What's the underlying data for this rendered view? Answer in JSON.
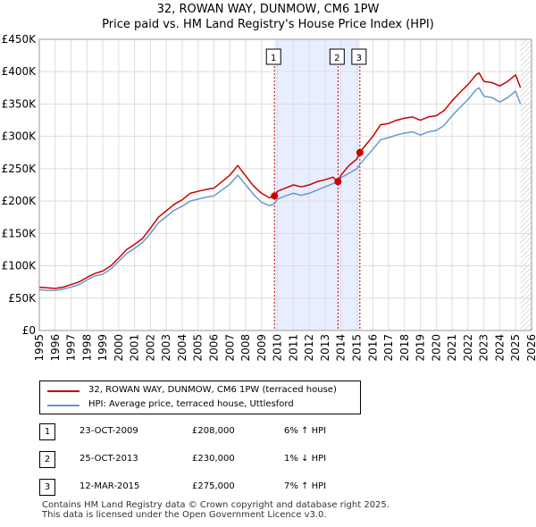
{
  "title_line1": "32, ROWAN WAY, DUNMOW, CM6 1PW",
  "title_line2": "Price paid vs. HM Land Registry's House Price Index (HPI)",
  "colors": {
    "property": "#cc0000",
    "hpi": "#6699cc",
    "shade": "#e8eeff",
    "vline": "#cc0000",
    "grid": "#dddddd"
  },
  "chart_data": {
    "type": "line",
    "title": "32, ROWAN WAY, DUNMOW, CM6 1PW — Price paid vs. HM Land Registry's House Price Index (HPI)",
    "xlabel": "",
    "ylabel": "",
    "xlim": [
      1995,
      2026
    ],
    "ylim": [
      0,
      450000
    ],
    "y_ticks": [
      0,
      50000,
      100000,
      150000,
      200000,
      250000,
      300000,
      350000,
      400000,
      450000
    ],
    "y_tick_labels": [
      "£0",
      "£50K",
      "£100K",
      "£150K",
      "£200K",
      "£250K",
      "£300K",
      "£350K",
      "£400K",
      "£450K"
    ],
    "x_ticks": [
      1995,
      1996,
      1997,
      1998,
      1999,
      2000,
      2001,
      2002,
      2003,
      2004,
      2005,
      2006,
      2007,
      2008,
      2009,
      2010,
      2011,
      2012,
      2013,
      2014,
      2015,
      2016,
      2017,
      2018,
      2019,
      2020,
      2021,
      2022,
      2023,
      2024,
      2025,
      2026
    ],
    "x_tick_labels": [
      "1995",
      "1996",
      "1997",
      "1998",
      "1999",
      "2000",
      "2001",
      "2002",
      "2003",
      "2004",
      "2005",
      "2006",
      "2007",
      "2008",
      "2009",
      "2010",
      "2011",
      "2012",
      "2013",
      "2014",
      "2015",
      "2016",
      "2017",
      "2018",
      "2019",
      "2020",
      "2021",
      "2022",
      "2023",
      "2024",
      "2025",
      "2026"
    ],
    "series": [
      {
        "name": "32, ROWAN WAY, DUNMOW, CM6 1PW (terraced house)",
        "color": "#cc0000",
        "points": [
          [
            1995.0,
            67000
          ],
          [
            1995.5,
            66000
          ],
          [
            1996.0,
            65000
          ],
          [
            1996.5,
            67000
          ],
          [
            1997.0,
            71000
          ],
          [
            1997.5,
            75000
          ],
          [
            1998.0,
            82000
          ],
          [
            1998.5,
            88000
          ],
          [
            1999.0,
            92000
          ],
          [
            1999.5,
            100000
          ],
          [
            2000.0,
            112000
          ],
          [
            2000.5,
            125000
          ],
          [
            2001.0,
            133000
          ],
          [
            2001.5,
            142000
          ],
          [
            2002.0,
            158000
          ],
          [
            2002.5,
            175000
          ],
          [
            2003.0,
            185000
          ],
          [
            2003.5,
            195000
          ],
          [
            2004.0,
            202000
          ],
          [
            2004.5,
            212000
          ],
          [
            2005.0,
            215000
          ],
          [
            2005.5,
            218000
          ],
          [
            2006.0,
            220000
          ],
          [
            2006.5,
            230000
          ],
          [
            2007.0,
            240000
          ],
          [
            2007.5,
            255000
          ],
          [
            2007.9,
            242000
          ],
          [
            2008.5,
            223000
          ],
          [
            2009.0,
            212000
          ],
          [
            2009.5,
            205000
          ],
          [
            2009.81,
            208000
          ],
          [
            2010.0,
            215000
          ],
          [
            2010.5,
            220000
          ],
          [
            2011.0,
            225000
          ],
          [
            2011.5,
            222000
          ],
          [
            2012.0,
            225000
          ],
          [
            2012.5,
            230000
          ],
          [
            2013.0,
            233000
          ],
          [
            2013.5,
            237000
          ],
          [
            2013.81,
            230000
          ],
          [
            2014.0,
            240000
          ],
          [
            2014.5,
            255000
          ],
          [
            2015.0,
            265000
          ],
          [
            2015.19,
            275000
          ],
          [
            2015.5,
            285000
          ],
          [
            2016.0,
            300000
          ],
          [
            2016.5,
            318000
          ],
          [
            2017.0,
            320000
          ],
          [
            2017.5,
            325000
          ],
          [
            2018.0,
            328000
          ],
          [
            2018.5,
            330000
          ],
          [
            2019.0,
            325000
          ],
          [
            2019.5,
            330000
          ],
          [
            2020.0,
            332000
          ],
          [
            2020.5,
            340000
          ],
          [
            2021.0,
            355000
          ],
          [
            2021.5,
            368000
          ],
          [
            2022.0,
            380000
          ],
          [
            2022.5,
            395000
          ],
          [
            2022.7,
            398000
          ],
          [
            2023.0,
            385000
          ],
          [
            2023.5,
            383000
          ],
          [
            2024.0,
            378000
          ],
          [
            2024.5,
            385000
          ],
          [
            2025.0,
            395000
          ],
          [
            2025.3,
            375000
          ]
        ]
      },
      {
        "name": "HPI: Average price, terraced house, Uttlesford",
        "color": "#6699cc",
        "points": [
          [
            1995.0,
            63000
          ],
          [
            1995.5,
            62000
          ],
          [
            1996.0,
            62000
          ],
          [
            1996.5,
            64000
          ],
          [
            1997.0,
            67000
          ],
          [
            1997.5,
            71000
          ],
          [
            1998.0,
            78000
          ],
          [
            1998.5,
            84000
          ],
          [
            1999.0,
            87000
          ],
          [
            1999.5,
            95000
          ],
          [
            2000.0,
            107000
          ],
          [
            2000.5,
            119000
          ],
          [
            2001.0,
            127000
          ],
          [
            2001.5,
            136000
          ],
          [
            2002.0,
            150000
          ],
          [
            2002.5,
            166000
          ],
          [
            2003.0,
            176000
          ],
          [
            2003.5,
            186000
          ],
          [
            2004.0,
            192000
          ],
          [
            2004.5,
            200000
          ],
          [
            2005.0,
            203000
          ],
          [
            2005.5,
            206000
          ],
          [
            2006.0,
            208000
          ],
          [
            2006.5,
            217000
          ],
          [
            2007.0,
            226000
          ],
          [
            2007.5,
            240000
          ],
          [
            2007.9,
            228000
          ],
          [
            2008.5,
            210000
          ],
          [
            2009.0,
            198000
          ],
          [
            2009.5,
            193000
          ],
          [
            2009.81,
            196000
          ],
          [
            2010.0,
            203000
          ],
          [
            2010.5,
            208000
          ],
          [
            2011.0,
            212000
          ],
          [
            2011.5,
            209000
          ],
          [
            2012.0,
            212000
          ],
          [
            2012.5,
            217000
          ],
          [
            2013.0,
            222000
          ],
          [
            2013.5,
            227000
          ],
          [
            2013.81,
            232000
          ],
          [
            2014.0,
            236000
          ],
          [
            2014.5,
            243000
          ],
          [
            2015.0,
            250000
          ],
          [
            2015.19,
            257000
          ],
          [
            2015.5,
            266000
          ],
          [
            2016.0,
            280000
          ],
          [
            2016.5,
            295000
          ],
          [
            2017.0,
            298000
          ],
          [
            2017.5,
            302000
          ],
          [
            2018.0,
            305000
          ],
          [
            2018.5,
            307000
          ],
          [
            2019.0,
            302000
          ],
          [
            2019.5,
            307000
          ],
          [
            2020.0,
            309000
          ],
          [
            2020.5,
            317000
          ],
          [
            2021.0,
            332000
          ],
          [
            2021.5,
            345000
          ],
          [
            2022.0,
            357000
          ],
          [
            2022.5,
            372000
          ],
          [
            2022.7,
            375000
          ],
          [
            2023.0,
            362000
          ],
          [
            2023.5,
            360000
          ],
          [
            2024.0,
            353000
          ],
          [
            2024.5,
            360000
          ],
          [
            2025.0,
            370000
          ],
          [
            2025.3,
            350000
          ]
        ]
      }
    ],
    "transactions": [
      {
        "id": "1",
        "date": "23-OCT-2009",
        "x": 2009.81,
        "price": 208000,
        "price_label": "£208,000",
        "hpi": "6% ↑ HPI"
      },
      {
        "id": "2",
        "date": "25-OCT-2013",
        "x": 2013.81,
        "price": 230000,
        "price_label": "£230,000",
        "hpi": "1% ↓ HPI"
      },
      {
        "id": "3",
        "date": "12-MAR-2015",
        "x": 2015.19,
        "price": 275000,
        "price_label": "£275,000",
        "hpi": "7% ↑ HPI"
      }
    ],
    "shaded_region": [
      2009.81,
      2015.19
    ],
    "hatched_region": [
      2025.3,
      2026
    ],
    "legend_position": "below"
  },
  "legend": {
    "property_label": "32, ROWAN WAY, DUNMOW, CM6 1PW (terraced house)",
    "hpi_label": "HPI: Average price, terraced house, Uttlesford"
  },
  "footer": {
    "line1": "Contains HM Land Registry data © Crown copyright and database right 2025.",
    "line2": "This data is licensed under the Open Government Licence v3.0."
  }
}
